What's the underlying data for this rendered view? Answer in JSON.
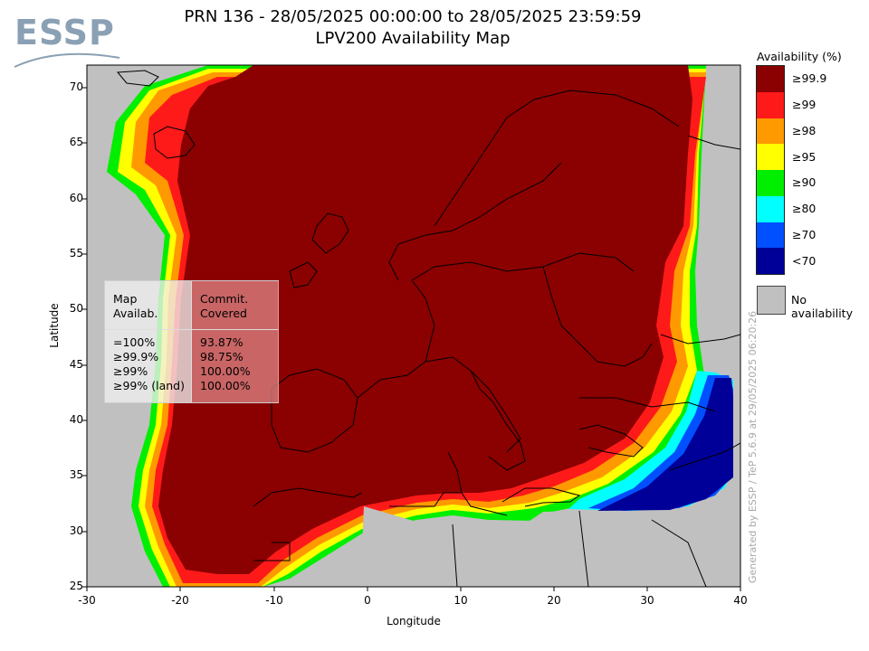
{
  "logo": {
    "text": "ESSP",
    "icon": "essp-logo"
  },
  "title": {
    "line1": "PRN 136 - 28/05/2025 00:00:00 to 28/05/2025 23:59:59",
    "line2": "LPV200 Availability Map"
  },
  "axes": {
    "xlabel": "Longitude",
    "ylabel": "Latitude",
    "xlim": [
      -30,
      40
    ],
    "ylim": [
      25,
      72
    ],
    "x_ticks": [
      "-30",
      "-20",
      "-10",
      "0",
      "10",
      "20",
      "30",
      "40"
    ],
    "y_ticks": [
      "70",
      "65",
      "60",
      "55",
      "50",
      "45",
      "40",
      "35",
      "30",
      "25"
    ]
  },
  "stats": {
    "col1_header_line1": "Map",
    "col1_header_line2": "Availab.",
    "col2_header_line1": "Commit.",
    "col2_header_line2": "Covered",
    "rows": [
      {
        "label": "=100%",
        "value": "93.87%"
      },
      {
        "label": "≥99.9%",
        "value": "98.75%"
      },
      {
        "label": "≥99%",
        "value": "100.00%"
      },
      {
        "label": "≥99% (land)",
        "value": "100.00%"
      }
    ]
  },
  "legend": {
    "title": "Availability (%)",
    "items": [
      {
        "label": "≥99.9",
        "color": "#8b0000"
      },
      {
        "label": "≥99",
        "color": "#ff1a1a"
      },
      {
        "label": "≥98",
        "color": "#ff9900"
      },
      {
        "label": "≥95",
        "color": "#ffff00"
      },
      {
        "label": "≥90",
        "color": "#00ee00"
      },
      {
        "label": "≥80",
        "color": "#00ffff"
      },
      {
        "label": "≥70",
        "color": "#0050ff"
      },
      {
        "label": "<70",
        "color": "#000099"
      }
    ],
    "no_availability_label": "No availability",
    "no_availability_color": "#c0c0c0"
  },
  "generated_text": "Generated by ESSP / TeP 5.6.9 at 29/05/2025 06:20:26"
}
